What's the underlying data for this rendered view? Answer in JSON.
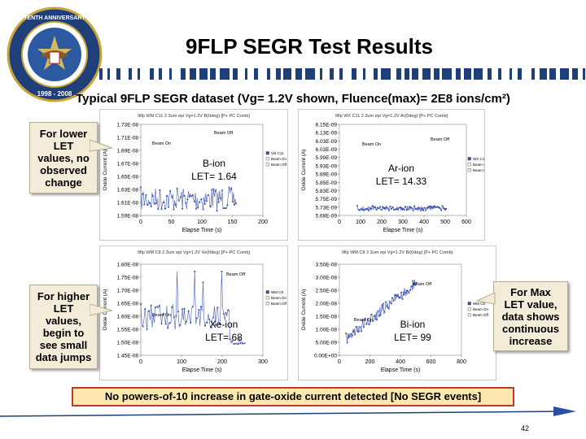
{
  "title": "9FLP SEGR Test Results",
  "subtitle": "Typical 9FLP SEGR dataset (Vg= 1.2V shown, Fluence(max)= 2E8 ions/cm²)",
  "seal": {
    "top_text": "TENTH ANNIVERSARY",
    "years": "1998 - 2008"
  },
  "callouts": {
    "left_top": [
      "For lower",
      "LET",
      "values, no",
      "observed",
      "change"
    ],
    "left_bottom": [
      "For higher",
      "LET",
      "values,",
      "begin to",
      "see small",
      "data jumps"
    ],
    "right": [
      "For Max",
      "LET value,",
      "data shows",
      "continuous",
      "increase"
    ]
  },
  "bottom_note": "No powers-of-10 increase in gate-oxide current detected [No SEGR events]",
  "page_number": "42",
  "chart_data": [
    {
      "type": "scatter",
      "title": "9flp WM C11 2.3um epi Vg=1.2V B(0deg) [P+ PC Comb]",
      "ion_label": "B-ion",
      "let_label": "LET= 1.64",
      "xlabel": "Elapse Time (s)",
      "ylabel": "Oxide Current (A)",
      "x_ticks": [
        "0",
        "50",
        "100",
        "150",
        "200"
      ],
      "y_ticks": [
        "1.73E-08",
        "1.71E-08",
        "1.69E-08",
        "1.67E-08",
        "1.65E-08",
        "1.63E-08",
        "1.61E-08",
        "1.59E-08"
      ],
      "xlim": [
        0,
        200
      ],
      "ylim": [
        1.59e-08,
        1.73e-08
      ],
      "annotations": [
        "Beam On",
        "Beam Off"
      ],
      "legend": [
        "Vid C11",
        "Beam On",
        "Beam Off"
      ]
    },
    {
      "type": "scatter",
      "title": "9flp WX C11 2.3um epi Vg=1.2V Ar(0deg) [P+ PC Comb]",
      "ion_label": "Ar-ion",
      "let_label": "LET= 14.33",
      "xlabel": "Elapse Time (s)",
      "ylabel": "Oxide Current (A)",
      "x_ticks": [
        "0",
        "100",
        "200",
        "300",
        "400",
        "500",
        "600"
      ],
      "y_ticks": [
        "6.15E-09",
        "6.13E-09",
        "6.03E-09",
        "6.03E-09",
        "5.99E-09",
        "5.93E-09",
        "5.89E-09",
        "5.85E-09",
        "5.83E-09",
        "5.75E-09",
        "5.73E-09",
        "5.68E-09"
      ],
      "xlim": [
        0,
        600
      ],
      "ylim": [
        5.68e-09,
        6.15e-09
      ],
      "annotations": [
        "Beam On",
        "Beam Off"
      ],
      "legend": [
        "WX C11",
        "Beam On",
        "Beam Off"
      ]
    },
    {
      "type": "scatter",
      "title": "9flp WM C8 2.3um epi Vg=1.2V Xe(0deg) [P+ PC Comb]",
      "ion_label": "Xe-ion",
      "let_label": "LET= 68",
      "xlabel": "Elapse Time (s)",
      "ylabel": "Oxide Current (A)",
      "x_ticks": [
        "0",
        "100",
        "200",
        "300"
      ],
      "y_ticks": [
        "1.80E-08",
        "1.75E-08",
        "1.70E-08",
        "1.65E-08",
        "1.60E-08",
        "1.55E-08",
        "1.50E-08",
        "1.45E-08"
      ],
      "xlim": [
        0,
        300
      ],
      "ylim": [
        1.45e-08,
        1.8e-08
      ],
      "annotations": [
        "Beam Off",
        "Beam On"
      ],
      "legend": [
        "WM C8",
        "Beam On",
        "Beam Off"
      ]
    },
    {
      "type": "scatter",
      "title": "9flp WM C8 2.3um epi Vg=1.2V Bi(0deg) [P+ PC Comb]",
      "ion_label": "Bi-ion",
      "let_label": "LET= 99",
      "xlabel": "Elapse Time (s)",
      "ylabel": "Oxide Current (A)",
      "x_ticks": [
        "0",
        "200",
        "400",
        "600",
        "800"
      ],
      "y_ticks": [
        "3.50E-08",
        "3.00E-08",
        "2.50E-08",
        "2.00E-08",
        "1.50E-08",
        "1.00E-08",
        "5.00E-09",
        "0.00E+00"
      ],
      "xlim": [
        0,
        800
      ],
      "ylim": [
        0,
        3.5e-08
      ],
      "annotations": [
        "Beam Off",
        "Beam On"
      ],
      "legend": [
        "WM C8",
        "Beam On",
        "Beam Off"
      ]
    }
  ]
}
